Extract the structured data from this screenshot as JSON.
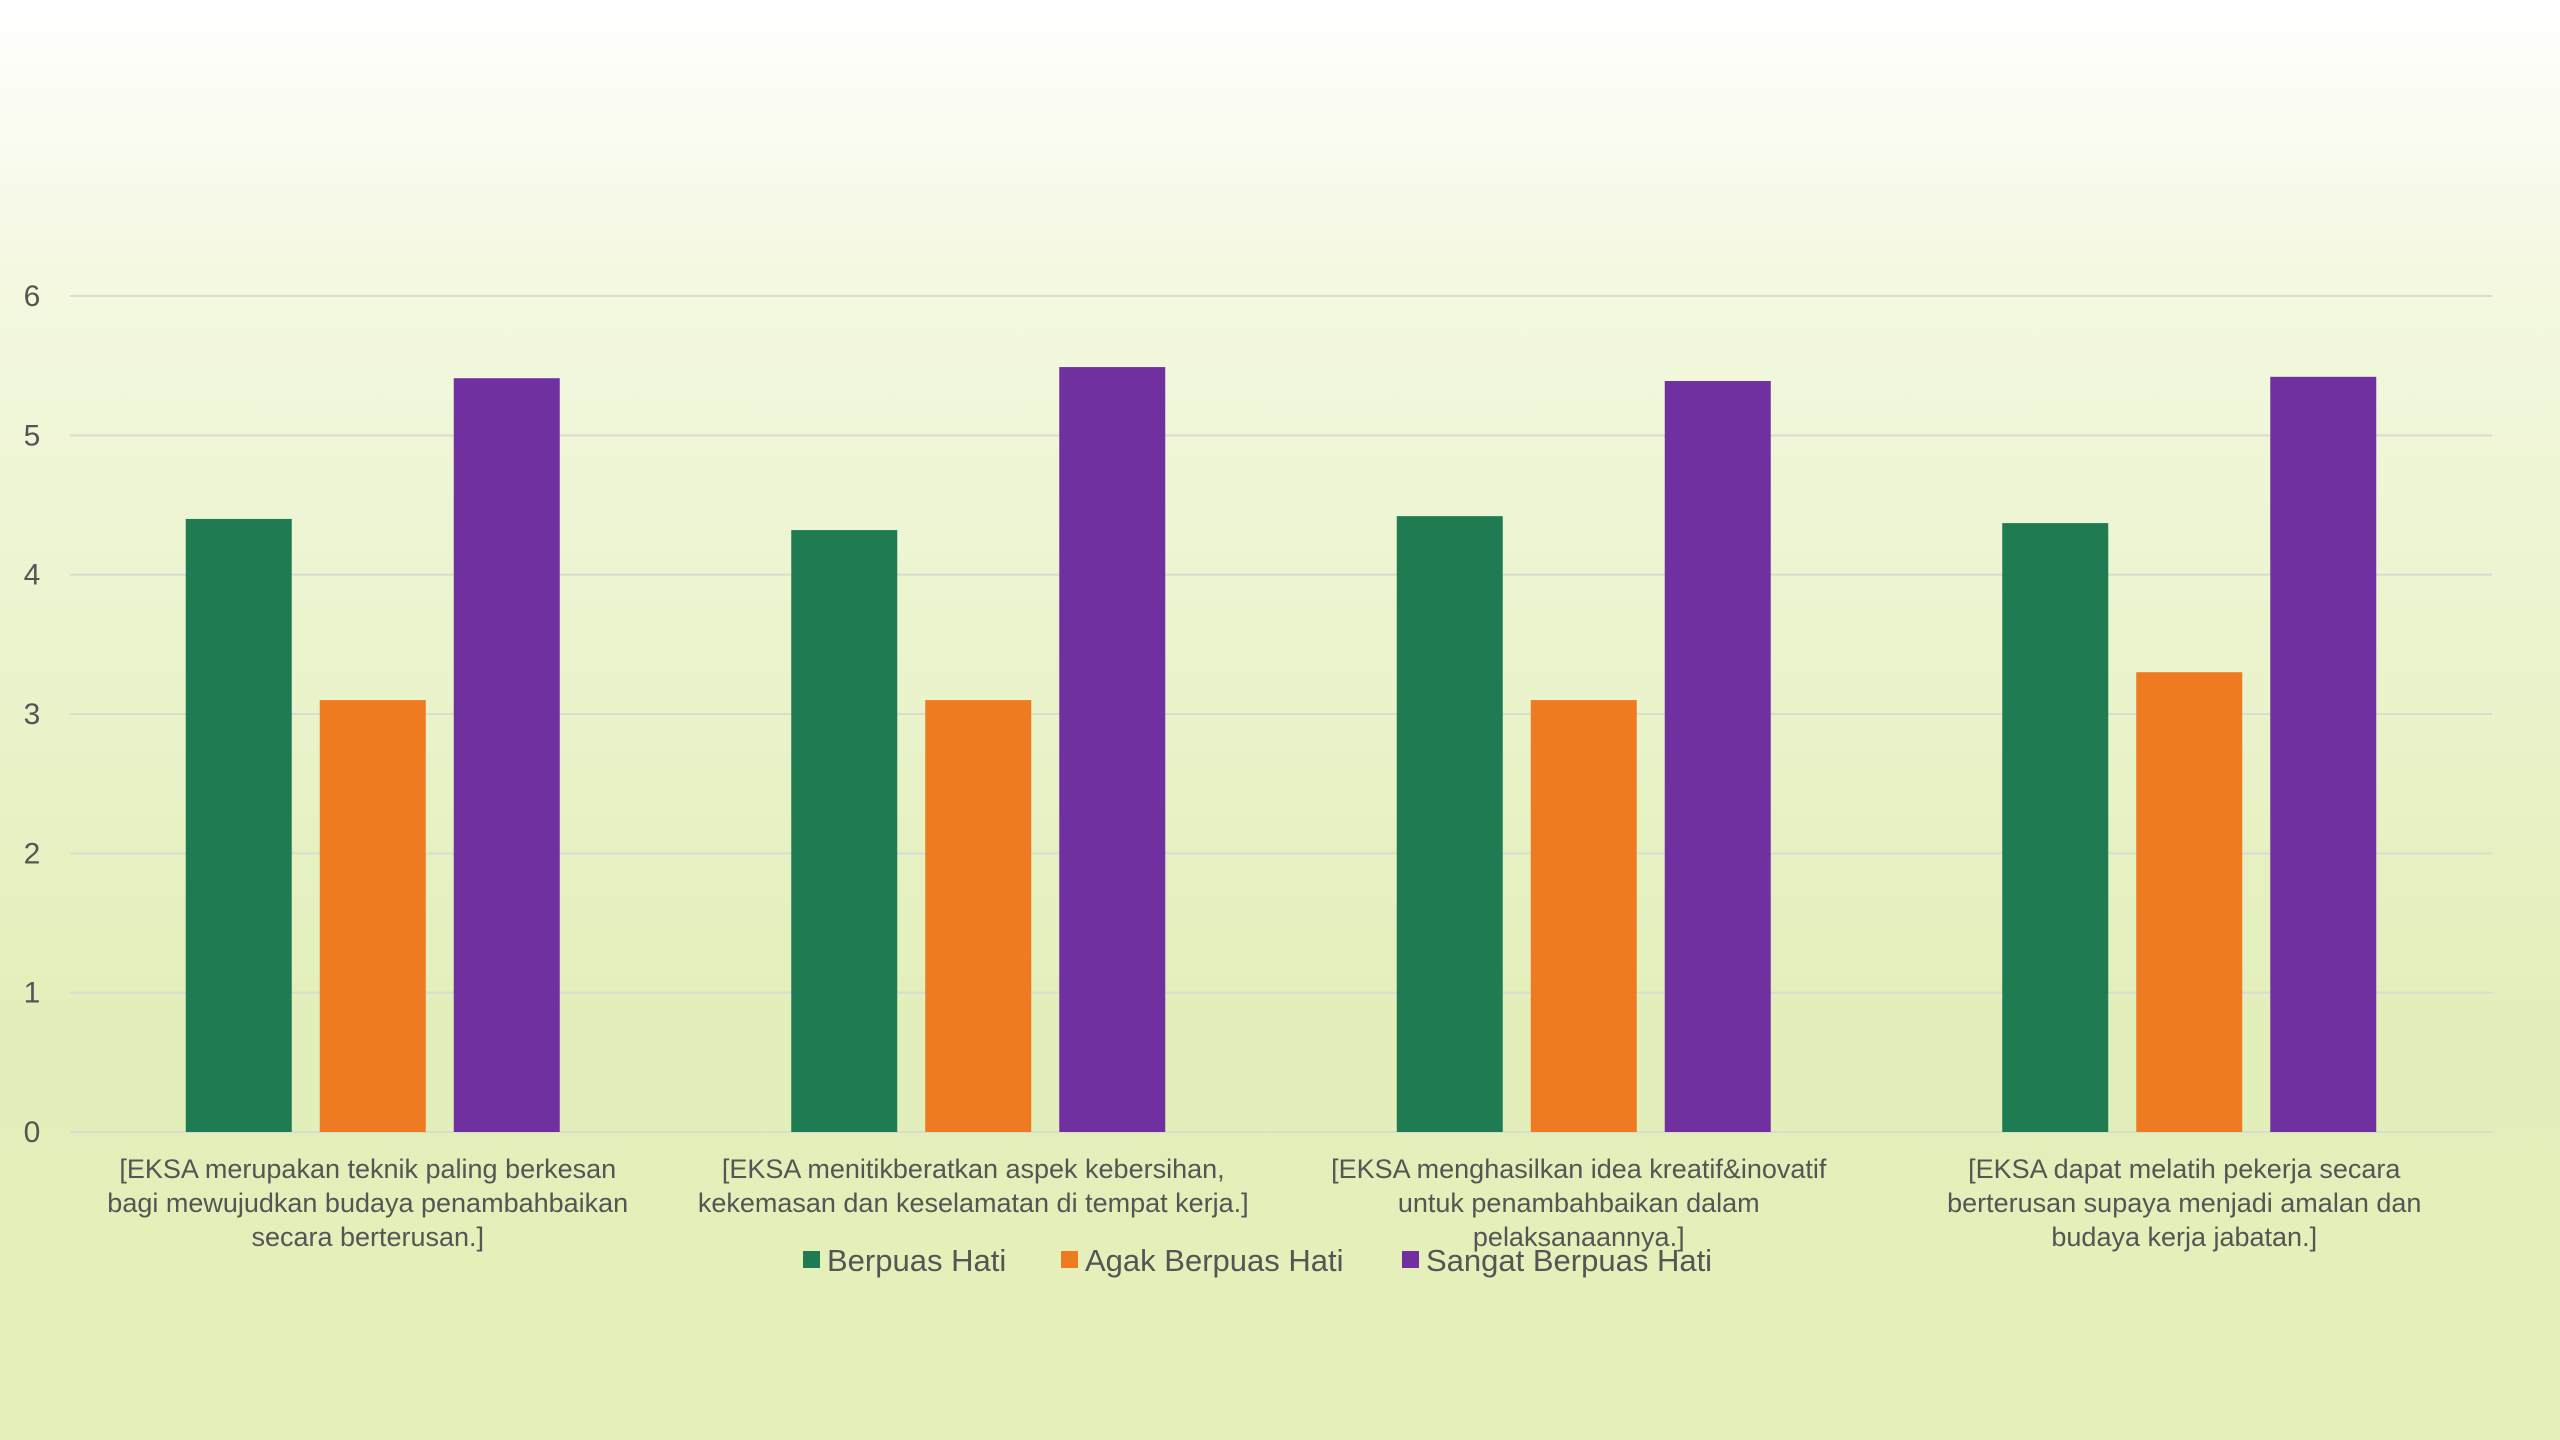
{
  "chart_data": {
    "type": "bar",
    "categories": [
      [
        "[EKSA merupakan teknik paling berkesan",
        "bagi mewujudkan budaya penambahbaikan",
        "secara berterusan.]"
      ],
      [
        "[EKSA menitikberatkan aspek kebersihan,",
        "kekemasan dan keselamatan di tempat kerja.]"
      ],
      [
        "[EKSA menghasilkan idea kreatif&inovatif",
        "untuk penambahbaikan dalam",
        "pelaksanaannya.]"
      ],
      [
        "[EKSA dapat melatih pekerja secara",
        "berterusan supaya menjadi amalan dan",
        "budaya kerja jabatan.]"
      ]
    ],
    "series": [
      {
        "name": "Berpuas Hati",
        "color": "#1e7b52",
        "values": [
          4.4,
          4.32,
          4.42,
          4.37
        ]
      },
      {
        "name": "Agak Berpuas Hati",
        "color": "#ee7a22",
        "values": [
          3.1,
          3.1,
          3.1,
          3.3
        ]
      },
      {
        "name": "Sangat Berpuas Hati",
        "color": "#7030a0",
        "values": [
          5.41,
          5.49,
          5.39,
          5.42
        ]
      }
    ],
    "yticks": [
      "0",
      "1",
      "2",
      "3",
      "4",
      "5",
      "6"
    ],
    "ylim": [
      0,
      6
    ],
    "grid": true,
    "legend_position": "bottom"
  }
}
